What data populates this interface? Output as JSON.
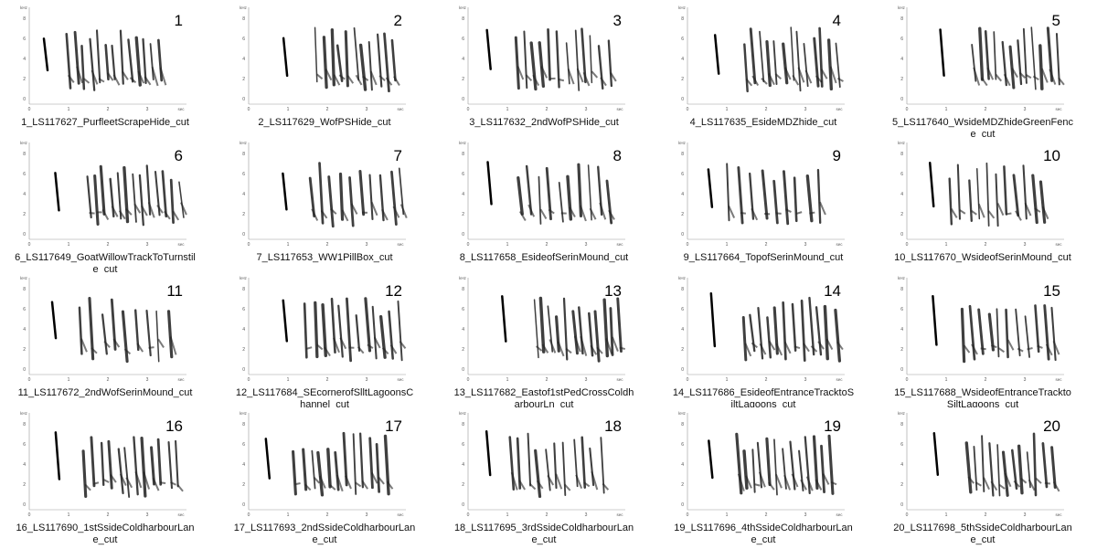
{
  "axis": {
    "y_unit": "kHz",
    "y_labels": [
      "8",
      "6",
      "4",
      "2",
      "0"
    ],
    "x_labels": [
      "0",
      "1",
      "2",
      "3"
    ],
    "x_unit": "sec"
  },
  "items": [
    {
      "number": "1",
      "filename": "1_LS117627_PurfleetScrapeHide_cut"
    },
    {
      "number": "2",
      "filename": "2_LS117629_WofPSHide_cut"
    },
    {
      "number": "3",
      "filename": "3_LS117632_2ndWofPSHide_cut"
    },
    {
      "number": "4",
      "filename": "4_LS117635_EsideMDZhide_cut"
    },
    {
      "number": "5",
      "filename": "5_LS117640_WsideMDZhideGreenFence_cut"
    },
    {
      "number": "6",
      "filename": "6_LS117649_GoatWillowTrackToTurnstile_cut"
    },
    {
      "number": "7",
      "filename": "7_LS117653_WW1PillBox_cut"
    },
    {
      "number": "8",
      "filename": "8_LS117658_EsideofSerinMound_cut"
    },
    {
      "number": "9",
      "filename": "9_LS117664_TopofSerinMound_cut"
    },
    {
      "number": "10",
      "filename": "10_LS117670_WsideofSerinMound_cut"
    },
    {
      "number": "11",
      "filename": "11_LS117672_2ndWofSerinMound_cut"
    },
    {
      "number": "12",
      "filename": "12_LS117684_SEcornerofSlltLagoonsChannel_cut"
    },
    {
      "number": "13",
      "filename": "13_LS117682_Eastof1stPedCrossColdharbourLn_cut"
    },
    {
      "number": "14",
      "filename": "14_LS117686_EsideofEntranceTracktoSiltLagoons_cut"
    },
    {
      "number": "15",
      "filename": "15_LS117688_WsideofEntranceTracktoSiltLagoons_cut"
    },
    {
      "number": "16",
      "filename": "16_LS117690_1stSsideColdharbourLane_cut"
    },
    {
      "number": "17",
      "filename": "17_LS117693_2ndSsideColdharbourLane_cut"
    },
    {
      "number": "18",
      "filename": "18_LS117695_3rdSsideColdharbourLane_cut"
    },
    {
      "number": "19",
      "filename": "19_LS117696_4thSsideColdharbourLane_cut"
    },
    {
      "number": "20",
      "filename": "20_LS117698_5thSsideColdharbourLane_cut"
    }
  ]
}
